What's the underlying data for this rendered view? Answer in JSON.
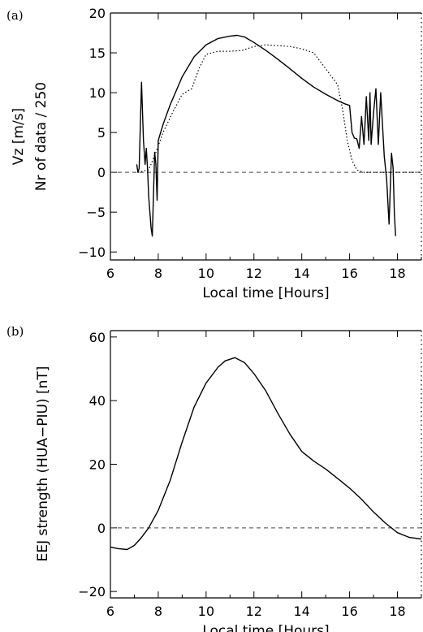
{
  "chart_data": [
    {
      "type": "line",
      "panel_label": "(a)",
      "xlabel": "Local time [Hours]",
      "ylabel_lines": [
        "Vz [m/s]",
        "Nr of data / 250"
      ],
      "xlim": [
        6,
        19
      ],
      "ylim": [
        -11,
        20
      ],
      "xticks": [
        6,
        8,
        10,
        12,
        14,
        16,
        18
      ],
      "yticks": [
        -10,
        -5,
        0,
        5,
        10,
        15,
        20
      ],
      "zero_line": 0,
      "series": [
        {
          "style": "solid",
          "points": [
            [
              7.1,
              1.0
            ],
            [
              7.15,
              0.0
            ],
            [
              7.2,
              0.5
            ],
            [
              7.3,
              11.3
            ],
            [
              7.38,
              4.0
            ],
            [
              7.45,
              1.0
            ],
            [
              7.5,
              3.0
            ],
            [
              7.55,
              0.5
            ],
            [
              7.6,
              -3.0
            ],
            [
              7.7,
              -7.0
            ],
            [
              7.75,
              -8.0
            ],
            [
              7.8,
              -3.0
            ],
            [
              7.85,
              2.5
            ],
            [
              7.9,
              1.0
            ],
            [
              7.95,
              -3.5
            ],
            [
              8.0,
              4.0
            ],
            [
              8.2,
              6.0
            ],
            [
              8.5,
              8.5
            ],
            [
              9.0,
              12.0
            ],
            [
              9.5,
              14.5
            ],
            [
              10.0,
              16.0
            ],
            [
              10.5,
              16.8
            ],
            [
              11.0,
              17.1
            ],
            [
              11.3,
              17.2
            ],
            [
              11.6,
              17.0
            ],
            [
              12.0,
              16.3
            ],
            [
              12.5,
              15.3
            ],
            [
              13.0,
              14.2
            ],
            [
              13.5,
              13.0
            ],
            [
              14.0,
              11.8
            ],
            [
              14.5,
              10.7
            ],
            [
              15.0,
              9.8
            ],
            [
              15.5,
              9.0
            ],
            [
              15.8,
              8.6
            ],
            [
              16.0,
              8.4
            ],
            [
              16.1,
              5.0
            ],
            [
              16.2,
              4.3
            ],
            [
              16.3,
              4.2
            ],
            [
              16.4,
              3.0
            ],
            [
              16.5,
              7.0
            ],
            [
              16.6,
              3.5
            ],
            [
              16.7,
              9.5
            ],
            [
              16.8,
              4.0
            ],
            [
              16.85,
              10.0
            ],
            [
              16.9,
              3.5
            ],
            [
              17.0,
              7.5
            ],
            [
              17.1,
              10.5
            ],
            [
              17.2,
              3.5
            ],
            [
              17.3,
              10.0
            ],
            [
              17.45,
              2.0
            ],
            [
              17.55,
              -1.0
            ],
            [
              17.65,
              -6.5
            ],
            [
              17.75,
              2.4
            ],
            [
              17.82,
              0.5
            ],
            [
              17.87,
              -5.0
            ],
            [
              17.92,
              -8.0
            ]
          ]
        },
        {
          "style": "dotted",
          "points": [
            [
              7.15,
              0.0
            ],
            [
              7.6,
              0.3
            ],
            [
              7.9,
              2.5
            ],
            [
              8.2,
              5.0
            ],
            [
              8.6,
              7.5
            ],
            [
              9.0,
              9.8
            ],
            [
              9.4,
              10.5
            ],
            [
              9.7,
              13.0
            ],
            [
              10.0,
              14.8
            ],
            [
              10.5,
              15.2
            ],
            [
              11.0,
              15.2
            ],
            [
              11.5,
              15.3
            ],
            [
              12.0,
              15.8
            ],
            [
              12.5,
              16.0
            ],
            [
              13.0,
              15.9
            ],
            [
              13.5,
              15.8
            ],
            [
              14.0,
              15.5
            ],
            [
              14.5,
              15.0
            ],
            [
              15.0,
              13.0
            ],
            [
              15.5,
              11.0
            ],
            [
              15.7,
              8.0
            ],
            [
              15.9,
              4.0
            ],
            [
              16.1,
              1.5
            ],
            [
              16.3,
              0.3
            ],
            [
              16.6,
              0.0
            ],
            [
              17.3,
              0.0
            ],
            [
              17.9,
              0.0
            ],
            [
              19.0,
              0.0
            ]
          ]
        }
      ]
    },
    {
      "type": "line",
      "panel_label": "(b)",
      "xlabel": "Local time [Hours]",
      "ylabel_lines": [
        "EEJ strength (HUA−PIU) [nT]"
      ],
      "xlim": [
        6,
        19
      ],
      "ylim": [
        -22,
        62
      ],
      "xticks": [
        6,
        8,
        10,
        12,
        14,
        16,
        18
      ],
      "yticks": [
        -20,
        0,
        20,
        40,
        60
      ],
      "zero_line": 0,
      "series": [
        {
          "style": "solid",
          "points": [
            [
              6.0,
              -6.0
            ],
            [
              6.3,
              -6.5
            ],
            [
              6.7,
              -6.8
            ],
            [
              7.0,
              -5.5
            ],
            [
              7.3,
              -3.0
            ],
            [
              7.6,
              0.0
            ],
            [
              8.0,
              5.5
            ],
            [
              8.5,
              15.0
            ],
            [
              9.0,
              27.0
            ],
            [
              9.5,
              38.0
            ],
            [
              10.0,
              45.5
            ],
            [
              10.5,
              50.5
            ],
            [
              10.8,
              52.5
            ],
            [
              11.2,
              53.5
            ],
            [
              11.6,
              52.0
            ],
            [
              12.0,
              48.5
            ],
            [
              12.5,
              43.0
            ],
            [
              13.0,
              36.0
            ],
            [
              13.5,
              29.5
            ],
            [
              14.0,
              24.0
            ],
            [
              14.5,
              21.0
            ],
            [
              15.0,
              18.5
            ],
            [
              15.5,
              15.5
            ],
            [
              16.0,
              12.5
            ],
            [
              16.5,
              9.0
            ],
            [
              17.0,
              5.0
            ],
            [
              17.5,
              1.5
            ],
            [
              18.0,
              -1.5
            ],
            [
              18.5,
              -3.0
            ],
            [
              19.0,
              -3.5
            ]
          ]
        }
      ]
    }
  ]
}
